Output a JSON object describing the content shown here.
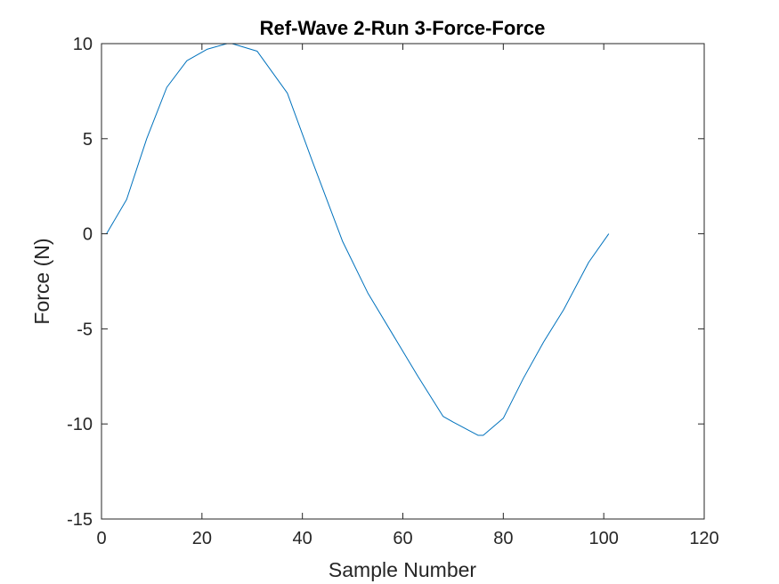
{
  "chart_data": {
    "type": "line",
    "title": "Ref-Wave 2-Run 3-Force-Force",
    "xlabel": "Sample Number",
    "ylabel": "Force (N)",
    "xlim": [
      0,
      120
    ],
    "ylim": [
      -15,
      10
    ],
    "xticks": [
      0,
      20,
      40,
      60,
      80,
      100,
      120
    ],
    "yticks": [
      -15,
      -10,
      -5,
      0,
      5,
      10
    ],
    "xtick_labels": [
      "0",
      "20",
      "40",
      "60",
      "80",
      "100",
      "120"
    ],
    "ytick_labels": [
      "-15",
      "-10",
      "-5",
      "0",
      "5",
      "10"
    ],
    "grid": false,
    "box": true,
    "line_color": "#0072BD",
    "series": [
      {
        "x": [
          1,
          5,
          9,
          13,
          17,
          21,
          25,
          26,
          31,
          37,
          42,
          48,
          53,
          58,
          63,
          68,
          70,
          75,
          76,
          80,
          84,
          88,
          92,
          97,
          101
        ],
        "y": [
          0,
          1.8,
          5.0,
          7.7,
          9.1,
          9.7,
          10.0,
          10.0,
          9.6,
          7.4,
          3.8,
          -0.4,
          -3.1,
          -5.3,
          -7.5,
          -9.6,
          -9.9,
          -10.6,
          -10.6,
          -9.7,
          -7.6,
          -5.7,
          -4.0,
          -1.5,
          0
        ]
      }
    ]
  }
}
